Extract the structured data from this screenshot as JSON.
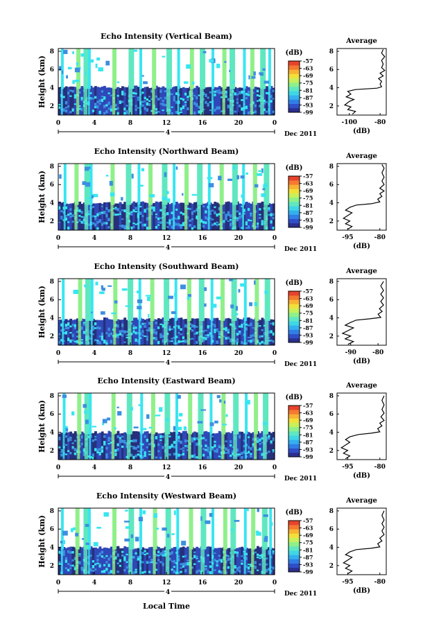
{
  "x_axis_title": "Local Time",
  "colorbar": {
    "unit": "(dB)",
    "ticks": [
      "-57",
      "-63",
      "-69",
      "-75",
      "-81",
      "-87",
      "-93",
      "-99"
    ],
    "colors": [
      "#2b2f8f",
      "#2f4fc8",
      "#2f7fe6",
      "#33b0ef",
      "#3fd6e6",
      "#5fe8c0",
      "#8ff08a",
      "#c8f05a",
      "#f2e03a",
      "#f8b233",
      "#f57a30",
      "#e8432c"
    ]
  },
  "image_colors": {
    "low": "#26307a",
    "low2": "#2f48b8",
    "mid": "#3d8fe0",
    "cyan": "#38e6f0",
    "green": "#8ff08a",
    "teal": "#5fe8c0"
  },
  "chart_data": [
    {
      "type": "heatmap",
      "title": "Echo Intensity (Vertical Beam)",
      "ylabel": "Height (km)",
      "x_ticks": [
        "0",
        "4",
        "8",
        "12",
        "16",
        "20",
        "0"
      ],
      "x_range": [
        0,
        24
      ],
      "y_ticks": [
        "2",
        "4",
        "6",
        "8"
      ],
      "y_range": [
        1.0,
        8.3
      ],
      "day_marker": "4",
      "date_label": "Dec 2011",
      "cloud_base_km": 4.1,
      "bright_columns_hr": [
        0.3,
        2.0,
        2.8,
        3.3,
        6.0,
        7.8,
        9.0,
        10.4,
        12.0,
        13.2,
        14.6,
        15.7,
        17.0,
        18.2,
        19.0,
        20.5,
        21.3,
        22.4,
        23.3
      ],
      "average_profile": {
        "title": "Average",
        "xlabel": "(dB)",
        "x_ticks": [
          "-100",
          "-80"
        ],
        "x_range": [
          -108,
          -76
        ],
        "y_ticks": [
          "2",
          "4",
          "6",
          "8"
        ],
        "y_range": [
          1.0,
          8.3
        ],
        "points": [
          [
            -98,
            1.1
          ],
          [
            -96,
            1.4
          ],
          [
            -101,
            1.6
          ],
          [
            -99,
            1.9
          ],
          [
            -103,
            2.1
          ],
          [
            -100,
            2.5
          ],
          [
            -97,
            2.7
          ],
          [
            -102,
            3.0
          ],
          [
            -99,
            3.3
          ],
          [
            -101,
            3.6
          ],
          [
            -96,
            3.8
          ],
          [
            -82,
            3.95
          ],
          [
            -79,
            4.1
          ],
          [
            -80,
            4.4
          ],
          [
            -79,
            4.7
          ],
          [
            -81,
            5.0
          ],
          [
            -78,
            5.3
          ],
          [
            -80,
            5.6
          ],
          [
            -77,
            5.9
          ],
          [
            -79,
            6.2
          ],
          [
            -78,
            6.6
          ],
          [
            -79,
            7.0
          ],
          [
            -77,
            7.4
          ],
          [
            -79,
            7.8
          ],
          [
            -78,
            8.2
          ]
        ]
      }
    },
    {
      "type": "heatmap",
      "title": "Echo Intensity (Northward Beam)",
      "ylabel": "Height (km)",
      "x_ticks": [
        "0",
        "4",
        "8",
        "12",
        "16",
        "20",
        "0"
      ],
      "x_range": [
        0,
        24
      ],
      "y_ticks": [
        "2",
        "4",
        "6",
        "8"
      ],
      "y_range": [
        1.0,
        8.3
      ],
      "day_marker": "4",
      "date_label": "Dec 2011",
      "cloud_base_km": 4.0,
      "bright_columns_hr": [
        0.6,
        1.8,
        2.9,
        3.5,
        5.8,
        7.5,
        8.8,
        10.0,
        11.5,
        12.7,
        14.0,
        15.4,
        16.6,
        17.9,
        19.3,
        20.4,
        21.6,
        22.8
      ],
      "average_profile": {
        "title": "Average",
        "xlabel": "(dB)",
        "x_ticks": [
          "-95",
          "-80"
        ],
        "x_range": [
          -100,
          -77
        ],
        "y_ticks": [
          "2",
          "4",
          "6",
          "8"
        ],
        "y_range": [
          1.0,
          8.3
        ],
        "points": [
          [
            -95,
            1.1
          ],
          [
            -93,
            1.4
          ],
          [
            -96,
            1.7
          ],
          [
            -94,
            2.0
          ],
          [
            -97,
            2.3
          ],
          [
            -95,
            2.6
          ],
          [
            -93,
            2.9
          ],
          [
            -96,
            3.2
          ],
          [
            -94,
            3.5
          ],
          [
            -91,
            3.75
          ],
          [
            -84,
            3.9
          ],
          [
            -80,
            4.1
          ],
          [
            -81,
            4.4
          ],
          [
            -79,
            4.7
          ],
          [
            -80,
            5.0
          ],
          [
            -78,
            5.3
          ],
          [
            -80,
            5.6
          ],
          [
            -78,
            6.0
          ],
          [
            -79,
            6.4
          ],
          [
            -78,
            6.8
          ],
          [
            -79,
            7.3
          ],
          [
            -78,
            7.8
          ],
          [
            -79,
            8.2
          ]
        ]
      }
    },
    {
      "type": "heatmap",
      "title": "Echo Intensity (Southward Beam)",
      "ylabel": "Height (km)",
      "x_ticks": [
        "0",
        "4",
        "8",
        "12",
        "16",
        "20",
        "0"
      ],
      "x_range": [
        0,
        24
      ],
      "y_ticks": [
        "2",
        "4",
        "6",
        "8"
      ],
      "y_range": [
        1.0,
        8.3
      ],
      "day_marker": "4",
      "date_label": "Dec 2011",
      "cloud_base_km": 3.9,
      "bright_columns_hr": [
        0.4,
        2.2,
        3.0,
        3.6,
        6.1,
        7.7,
        8.9,
        10.2,
        11.7,
        12.9,
        14.3,
        15.6,
        16.9,
        18.0,
        19.2,
        20.6,
        21.8,
        22.9
      ],
      "average_profile": {
        "title": "Average",
        "xlabel": "(dB)",
        "x_ticks": [
          "-90",
          "-80"
        ],
        "x_range": [
          -95,
          -77
        ],
        "y_ticks": [
          "2",
          "4",
          "6",
          "8"
        ],
        "y_range": [
          1.0,
          8.3
        ],
        "points": [
          [
            -91,
            1.1
          ],
          [
            -89,
            1.4
          ],
          [
            -92,
            1.7
          ],
          [
            -90,
            2.0
          ],
          [
            -93,
            2.3
          ],
          [
            -91,
            2.6
          ],
          [
            -89,
            2.9
          ],
          [
            -92,
            3.2
          ],
          [
            -90,
            3.5
          ],
          [
            -88,
            3.75
          ],
          [
            -83,
            3.9
          ],
          [
            -79,
            4.05
          ],
          [
            -80,
            4.4
          ],
          [
            -78.5,
            4.7
          ],
          [
            -79.5,
            5.0
          ],
          [
            -78,
            5.4
          ],
          [
            -79,
            5.8
          ],
          [
            -78,
            6.2
          ],
          [
            -79,
            6.6
          ],
          [
            -78,
            7.0
          ],
          [
            -79,
            7.5
          ],
          [
            -78,
            8.0
          ]
        ]
      }
    },
    {
      "type": "heatmap",
      "title": "Echo Intensity (Eastward Beam)",
      "ylabel": "Height (km)",
      "x_ticks": [
        "0",
        "4",
        "8",
        "12",
        "16",
        "20",
        "0"
      ],
      "x_range": [
        0,
        24
      ],
      "y_ticks": [
        "2",
        "4",
        "6",
        "8"
      ],
      "y_range": [
        1.0,
        8.3
      ],
      "day_marker": "4",
      "date_label": "Dec 2011",
      "cloud_base_km": 4.0,
      "bright_columns_hr": [
        0.5,
        2.1,
        2.9,
        3.4,
        5.9,
        7.6,
        9.1,
        10.3,
        11.8,
        13.0,
        14.4,
        15.5,
        16.8,
        18.1,
        19.4,
        20.7,
        21.7,
        22.7
      ],
      "average_profile": {
        "title": "Average",
        "xlabel": "(dB)",
        "x_ticks": [
          "-95",
          "-80"
        ],
        "x_range": [
          -100,
          -77
        ],
        "y_ticks": [
          "2",
          "4",
          "6",
          "8"
        ],
        "y_range": [
          1.0,
          8.3
        ],
        "points": [
          [
            -96,
            1.1
          ],
          [
            -94,
            1.4
          ],
          [
            -97,
            1.7
          ],
          [
            -95,
            2.0
          ],
          [
            -98,
            2.3
          ],
          [
            -96,
            2.6
          ],
          [
            -94,
            2.9
          ],
          [
            -96,
            3.2
          ],
          [
            -94,
            3.5
          ],
          [
            -90,
            3.75
          ],
          [
            -84,
            3.9
          ],
          [
            -80,
            4.05
          ],
          [
            -81,
            4.4
          ],
          [
            -79,
            4.7
          ],
          [
            -80,
            5.0
          ],
          [
            -78,
            5.3
          ],
          [
            -79.5,
            5.7
          ],
          [
            -78,
            6.1
          ],
          [
            -79,
            6.5
          ],
          [
            -78,
            7.0
          ],
          [
            -79,
            7.5
          ],
          [
            -78,
            8.0
          ]
        ]
      }
    },
    {
      "type": "heatmap",
      "title": "Echo Intensity (Westward Beam)",
      "ylabel": "Height (km)",
      "x_ticks": [
        "0",
        "4",
        "8",
        "12",
        "16",
        "20",
        "0"
      ],
      "x_range": [
        0,
        24
      ],
      "y_ticks": [
        "2",
        "4",
        "6",
        "8"
      ],
      "y_range": [
        1.0,
        8.3
      ],
      "day_marker": "4",
      "date_label": "Dec 2011",
      "cloud_base_km": 4.0,
      "bright_columns_hr": [
        0.3,
        1.9,
        2.8,
        3.3,
        6.0,
        7.8,
        9.0,
        10.5,
        11.9,
        13.1,
        14.5,
        15.8,
        17.0,
        18.3,
        19.1,
        20.6,
        21.4,
        22.6,
        23.4
      ],
      "average_profile": {
        "title": "Average",
        "xlabel": "(dB)",
        "x_ticks": [
          "-95",
          "-80"
        ],
        "x_range": [
          -100,
          -77
        ],
        "y_ticks": [
          "2",
          "4",
          "6",
          "8"
        ],
        "y_range": [
          1.0,
          8.3
        ],
        "points": [
          [
            -95,
            1.1
          ],
          [
            -93,
            1.4
          ],
          [
            -96,
            1.7
          ],
          [
            -94,
            2.0
          ],
          [
            -97,
            2.3
          ],
          [
            -95,
            2.6
          ],
          [
            -93,
            2.9
          ],
          [
            -96,
            3.2
          ],
          [
            -94,
            3.5
          ],
          [
            -91,
            3.75
          ],
          [
            -84,
            3.9
          ],
          [
            -80,
            4.05
          ],
          [
            -81,
            4.4
          ],
          [
            -79,
            4.7
          ],
          [
            -80,
            5.0
          ],
          [
            -78,
            5.4
          ],
          [
            -79,
            5.8
          ],
          [
            -78,
            6.2
          ],
          [
            -79,
            6.6
          ],
          [
            -78,
            7.0
          ],
          [
            -79,
            7.5
          ],
          [
            -78,
            8.0
          ]
        ]
      }
    }
  ]
}
